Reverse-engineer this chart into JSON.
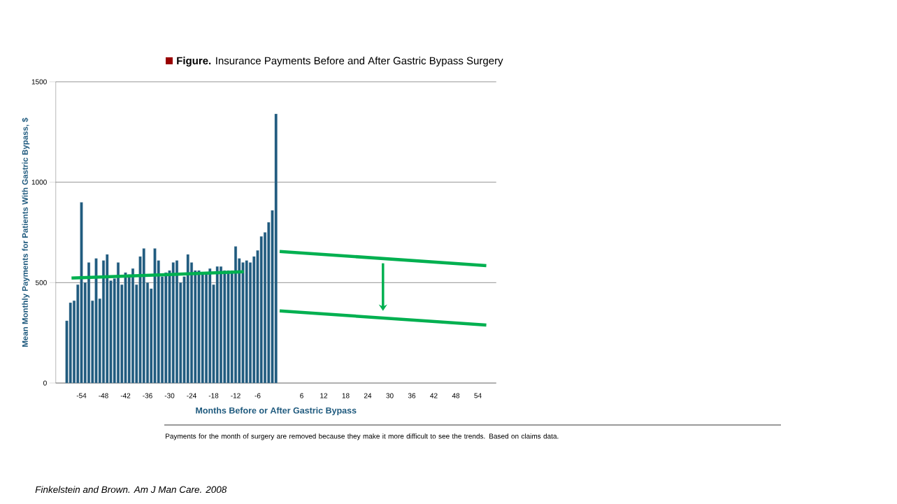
{
  "chart_data": {
    "type": "bar",
    "title": "**Figure.** Insurance Payments Before and After Gastric Bypass Surgery",
    "xlabel": "Months Before or After Gastric Bypass",
    "ylabel": "Mean Monthly Payments for Patients With Gastric Bypass, $",
    "x": [
      -58,
      -57,
      -56,
      -55,
      -54,
      -53,
      -52,
      -51,
      -50,
      -49,
      -48,
      -47,
      -46,
      -45,
      -44,
      -43,
      -42,
      -41,
      -40,
      -39,
      -38,
      -37,
      -36,
      -35,
      -34,
      -33,
      -32,
      -31,
      -30,
      -29,
      -28,
      -27,
      -26,
      -25,
      -24,
      -23,
      -22,
      -21,
      -20,
      -19,
      -18,
      -17,
      -16,
      -15,
      -14,
      -13,
      -12,
      -11,
      -10,
      -9,
      -8,
      -7,
      -6,
      -5,
      -4,
      -3,
      -2,
      -1
    ],
    "series": [
      {
        "color": "#1f5a7e",
        "values": [
          310,
          400,
          410,
          490,
          900,
          500,
          600,
          410,
          620,
          420,
          610,
          640,
          510,
          520,
          600,
          490,
          550,
          540,
          570,
          490,
          630,
          670,
          500,
          470,
          670,
          610,
          530,
          550,
          560,
          600,
          610,
          500,
          530,
          640,
          600,
          560,
          560,
          550,
          550,
          570,
          490,
          580,
          580,
          560,
          560,
          560,
          680,
          620,
          600,
          610,
          600,
          630,
          660,
          730,
          750,
          800,
          860,
          1340
        ]
      },
      {
        "type": "line",
        "color": "#00b050",
        "x": [
          -56.7,
          -9.8
        ],
        "values": [
          523,
          554
        ]
      },
      {
        "type": "line",
        "color": "#00b050",
        "x": [
          0,
          56.3
        ],
        "values": [
          655,
          585
        ]
      },
      {
        "type": "line",
        "color": "#00b050",
        "x": [
          0,
          56.3
        ],
        "values": [
          359,
          289
        ]
      }
    ],
    "xlim": [
      -61,
      59
    ],
    "ylim": [
      0,
      1500
    ],
    "xticks": [
      -54,
      -48,
      -42,
      -36,
      -30,
      -24,
      -18,
      -12,
      -6,
      6,
      12,
      18,
      24,
      30,
      36,
      42,
      48,
      54
    ],
    "yticks": [
      0,
      500,
      1000,
      1500
    ],
    "grid": "y",
    "annotations": [
      "Payments for the month of surgery are removed because they make it more difficult to see the trends. Based on claims data.",
      "*Finkelstein and Brown. Am J Man Care. 2008*"
    ]
  }
}
